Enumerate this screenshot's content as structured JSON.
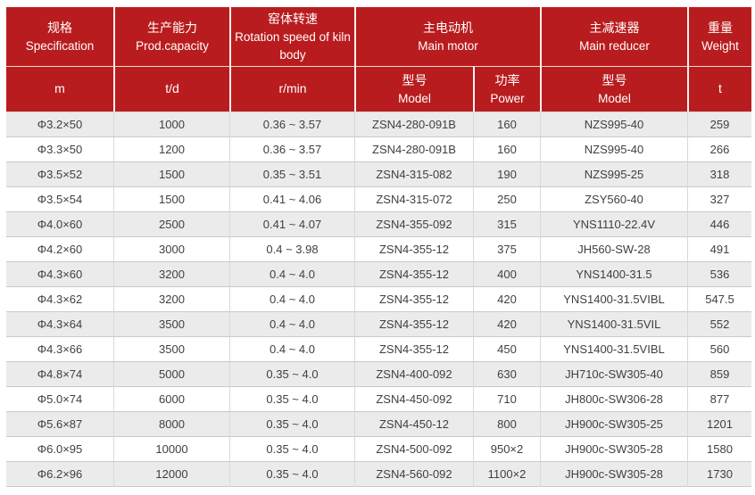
{
  "colors": {
    "header_bg": "#b91c1e",
    "header_text": "#ffffff",
    "row_alt_bg": "#ebebeb",
    "row_bg": "#ffffff",
    "body_text": "#404040",
    "grid_line_horizontal": "#c9c9c9",
    "grid_line_vertical": "#d9d9d9"
  },
  "chart_data": {
    "type": "table",
    "header_groups": [
      {
        "zh": "规格",
        "en": "Specification",
        "unit": "m"
      },
      {
        "zh": "生产能力",
        "en": "Prod.capacity",
        "unit": "t/d"
      },
      {
        "zh": "窑体转速",
        "en": "Rotation speed of kiln body",
        "unit": "r/min"
      },
      {
        "zh": "主电动机",
        "en": "Main motor",
        "sub": [
          {
            "zh": "型号",
            "en": "Model"
          },
          {
            "zh": "功率",
            "en": "Power"
          }
        ]
      },
      {
        "zh": "主减速器",
        "en": "Main reducer",
        "sub": [
          {
            "zh": "型号",
            "en": "Model"
          }
        ]
      },
      {
        "zh": "重量",
        "en": "Weight",
        "unit": "t"
      }
    ],
    "column_keys": [
      "specification",
      "capacity",
      "rotation-speed",
      "motor-model",
      "motor-power",
      "reducer-model",
      "weight"
    ],
    "rows": [
      [
        "Φ3.2×50",
        "1000",
        "0.36 ~ 3.57",
        "ZSN4-280-091B",
        "160",
        "NZS995-40",
        "259"
      ],
      [
        "Φ3.3×50",
        "1200",
        "0.36 ~ 3.57",
        "ZSN4-280-091B",
        "160",
        "NZS995-40",
        "266"
      ],
      [
        "Φ3.5×52",
        "1500",
        "0.35 ~ 3.51",
        "ZSN4-315-082",
        "190",
        "NZS995-25",
        "318"
      ],
      [
        "Φ3.5×54",
        "1500",
        "0.41 ~ 4.06",
        "ZSN4-315-072",
        "250",
        "ZSY560-40",
        "327"
      ],
      [
        "Φ4.0×60",
        "2500",
        "0.41 ~ 4.07",
        "ZSN4-355-092",
        "315",
        "YNS1110-22.4V",
        "446"
      ],
      [
        "Φ4.2×60",
        "3000",
        "0.4 ~ 3.98",
        "ZSN4-355-12",
        "375",
        "JH560-SW-28",
        "491"
      ],
      [
        "Φ4.3×60",
        "3200",
        "0.4 ~ 4.0",
        "ZSN4-355-12",
        "400",
        "YNS1400-31.5",
        "536"
      ],
      [
        "Φ4.3×62",
        "3200",
        "0.4 ~ 4.0",
        "ZSN4-355-12",
        "420",
        "YNS1400-31.5VIBL",
        "547.5"
      ],
      [
        "Φ4.3×64",
        "3500",
        "0.4 ~ 4.0",
        "ZSN4-355-12",
        "420",
        "YNS1400-31.5VIL",
        "552"
      ],
      [
        "Φ4.3×66",
        "3500",
        "0.4 ~ 4.0",
        "ZSN4-355-12",
        "450",
        "YNS1400-31.5VIBL",
        "560"
      ],
      [
        "Φ4.8×74",
        "5000",
        "0.35 ~ 4.0",
        "ZSN4-400-092",
        "630",
        "JH710c-SW305-40",
        "859"
      ],
      [
        "Φ5.0×74",
        "6000",
        "0.35 ~ 4.0",
        "ZSN4-450-092",
        "710",
        "JH800c-SW306-28",
        "877"
      ],
      [
        "Φ5.6×87",
        "8000",
        "0.35 ~ 4.0",
        "ZSN4-450-12",
        "800",
        "JH900c-SW305-25",
        "1201"
      ],
      [
        "Φ6.0×95",
        "10000",
        "0.35 ~ 4.0",
        "ZSN4-500-092",
        "950×2",
        "JH900c-SW305-28",
        "1580"
      ],
      [
        "Φ6.2×96",
        "12000",
        "0.35 ~ 4.0",
        "ZSN4-560-092",
        "1100×2",
        "JH900c-SW305-28",
        "1730"
      ]
    ]
  }
}
